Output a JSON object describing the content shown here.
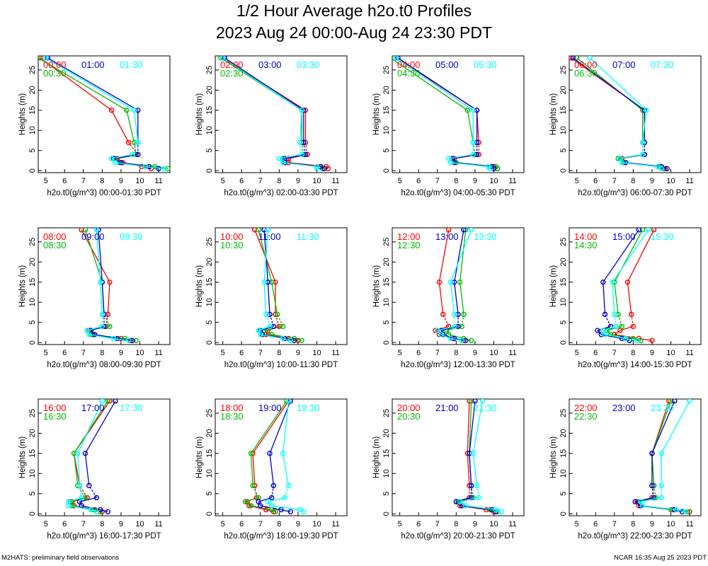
{
  "title": "1/2 Hour Average h2o.t0 Profiles",
  "subtitle": "2023 Aug 24 00:00-Aug 24 23:30 PDT",
  "footer_left": "M2HATS: preliminary field observations",
  "footer_right": "NCAR 16:35 Aug 25 2023 PDT",
  "series_colors": [
    "#ff0000",
    "#0000cc",
    "#00bb00",
    "#00ffff"
  ],
  "chart_data": [
    {
      "type": "line",
      "xlabel": "h2o.t0(g/m^3) 00:00-01:30 PDT",
      "ylabel": "Heights (m)",
      "xlim": [
        4.6,
        11.6
      ],
      "ylim": [
        -0.5,
        28.5
      ],
      "xticks": [
        5,
        6,
        7,
        8,
        9,
        10,
        11
      ],
      "yticks": [
        0,
        5,
        10,
        15,
        20,
        25
      ],
      "heights": [
        0.5,
        1,
        2,
        3,
        4,
        7,
        15,
        28
      ],
      "series": [
        {
          "name": "00:00",
          "color": "#ff0000",
          "values": [
            10.6,
            10.1,
            9.1,
            8.8,
            9.9,
            9.4,
            8.5,
            4.7
          ]
        },
        {
          "name": "01:00",
          "color": "#0000cc",
          "values": [
            11.0,
            10.5,
            9.0,
            8.6,
            9.9,
            9.9,
            9.9,
            5.1
          ]
        },
        {
          "name": "00:30",
          "color": "#00bb00",
          "values": [
            11.5,
            10.8,
            8.9,
            8.7,
            9.8,
            9.7,
            9.3,
            4.6
          ]
        },
        {
          "name": "01:30",
          "color": "#00ffff",
          "values": [
            11.3,
            10.3,
            8.7,
            8.5,
            9.6,
            9.9,
            9.7,
            5.0
          ]
        }
      ]
    },
    {
      "type": "line",
      "xlabel": "h2o.t0(g/m^3) 02:00-03:30 PDT",
      "ylabel": "Heights (m)",
      "xlim": [
        4.6,
        11.6
      ],
      "ylim": [
        -0.5,
        28.5
      ],
      "xticks": [
        5,
        6,
        7,
        8,
        9,
        10,
        11
      ],
      "yticks": [
        0,
        5,
        10,
        15,
        20,
        25
      ],
      "heights": [
        0.5,
        1,
        2,
        3,
        4,
        7,
        15,
        28
      ],
      "series": [
        {
          "name": "02:00",
          "color": "#ff0000",
          "values": [
            10.6,
            10.5,
            8.5,
            8.5,
            9.5,
            9.4,
            9.4,
            5.0
          ]
        },
        {
          "name": "03:00",
          "color": "#0000cc",
          "values": [
            10.4,
            10.2,
            8.3,
            8.3,
            9.4,
            9.3,
            9.3,
            5.1
          ]
        },
        {
          "name": "02:30",
          "color": "#00bb00",
          "values": [
            10.3,
            10.2,
            8.2,
            8.2,
            9.3,
            9.2,
            9.2,
            4.9
          ]
        },
        {
          "name": "03:30",
          "color": "#00ffff",
          "values": [
            10.0,
            10.0,
            8.2,
            8.0,
            9.2,
            9.1,
            9.2,
            5.0
          ]
        }
      ]
    },
    {
      "type": "line",
      "xlabel": "h2o.t0(g/m^3) 04:00-05:30 PDT",
      "ylabel": "Heights (m)",
      "xlim": [
        4.6,
        11.6
      ],
      "ylim": [
        -0.5,
        28.5
      ],
      "xticks": [
        5,
        6,
        7,
        8,
        9,
        10,
        11
      ],
      "yticks": [
        0,
        5,
        10,
        15,
        20,
        25
      ],
      "heights": [
        0.5,
        1,
        2,
        3,
        4,
        7,
        15,
        28
      ],
      "series": [
        {
          "name": "04:00",
          "color": "#ff0000",
          "values": [
            10.2,
            10.0,
            8.0,
            7.9,
            9.2,
            9.2,
            9.1,
            4.8
          ]
        },
        {
          "name": "05:00",
          "color": "#0000cc",
          "values": [
            10.0,
            9.9,
            7.9,
            7.8,
            9.1,
            9.1,
            9.1,
            4.9
          ]
        },
        {
          "name": "04:30",
          "color": "#00bb00",
          "values": [
            10.2,
            10.1,
            8.0,
            7.8,
            9.0,
            8.9,
            8.6,
            4.5
          ]
        },
        {
          "name": "05:30",
          "color": "#00ffff",
          "values": [
            9.8,
            9.7,
            7.7,
            7.6,
            8.9,
            8.9,
            8.9,
            4.8
          ]
        }
      ]
    },
    {
      "type": "line",
      "xlabel": "h2o.t0(g/m^3) 06:00-07:30 PDT",
      "ylabel": "Heights (m)",
      "xlim": [
        4.6,
        11.6
      ],
      "ylim": [
        -0.5,
        28.5
      ],
      "xticks": [
        5,
        6,
        7,
        8,
        9,
        10,
        11
      ],
      "yticks": [
        0,
        5,
        10,
        15,
        20,
        25
      ],
      "heights": [
        0.5,
        1,
        2,
        3,
        4,
        7,
        15,
        28
      ],
      "series": [
        {
          "name": "06:00",
          "color": "#ff0000",
          "values": [
            9.7,
            9.5,
            7.5,
            7.4,
            8.6,
            8.6,
            8.6,
            4.7
          ]
        },
        {
          "name": "07:00",
          "color": "#0000cc",
          "values": [
            9.8,
            9.5,
            7.6,
            7.3,
            8.6,
            8.6,
            8.6,
            4.8
          ]
        },
        {
          "name": "06:30",
          "color": "#00bb00",
          "values": [
            9.6,
            9.4,
            7.5,
            7.2,
            8.5,
            8.5,
            8.5,
            5.0
          ]
        },
        {
          "name": "07:30",
          "color": "#00ffff",
          "values": [
            9.5,
            9.3,
            7.4,
            7.3,
            8.5,
            8.5,
            8.7,
            5.7
          ]
        }
      ]
    },
    {
      "type": "line",
      "xlabel": "h2o.t0(g/m^3) 08:00-09:30 PDT",
      "ylabel": "Heights (m)",
      "xlim": [
        4.6,
        11.6
      ],
      "ylim": [
        -0.5,
        28.5
      ],
      "xticks": [
        5,
        6,
        7,
        8,
        9,
        10,
        11
      ],
      "yticks": [
        0,
        5,
        10,
        15,
        20,
        25
      ],
      "heights": [
        0.5,
        1,
        2,
        3,
        4,
        7,
        15,
        28
      ],
      "series": [
        {
          "name": "08:00",
          "color": "#ff0000",
          "values": [
            9.5,
            9.0,
            7.5,
            7.3,
            8.2,
            8.3,
            8.4,
            6.9
          ]
        },
        {
          "name": "09:00",
          "color": "#0000cc",
          "values": [
            9.6,
            8.8,
            7.6,
            7.4,
            8.1,
            8.1,
            8.0,
            7.8
          ]
        },
        {
          "name": "08:30",
          "color": "#00bb00",
          "values": [
            9.8,
            9.2,
            7.4,
            7.2,
            8.4,
            8.1,
            8.0,
            7.1
          ]
        },
        {
          "name": "09:30",
          "color": "#00ffff",
          "values": [
            9.4,
            8.6,
            7.3,
            7.2,
            8.0,
            8.0,
            7.9,
            7.7
          ]
        }
      ]
    },
    {
      "type": "line",
      "xlabel": "h2o.t0(g/m^3) 10:00-11:30 PDT",
      "ylabel": "Heights (m)",
      "xlim": [
        4.6,
        11.6
      ],
      "ylim": [
        -0.5,
        28.5
      ],
      "xticks": [
        5,
        6,
        7,
        8,
        9,
        10,
        11
      ],
      "yticks": [
        0,
        5,
        10,
        15,
        20,
        25
      ],
      "heights": [
        0.5,
        1,
        2,
        3,
        4,
        7,
        15,
        28
      ],
      "series": [
        {
          "name": "10:00",
          "color": "#ff0000",
          "values": [
            9.0,
            8.5,
            7.3,
            7.4,
            8.0,
            7.8,
            7.8,
            6.7
          ]
        },
        {
          "name": "11:00",
          "color": "#0000cc",
          "values": [
            8.8,
            8.3,
            7.1,
            7.0,
            7.7,
            7.5,
            7.4,
            7.2
          ]
        },
        {
          "name": "10:30",
          "color": "#00bb00",
          "values": [
            9.2,
            8.8,
            7.6,
            7.2,
            8.2,
            7.9,
            7.6,
            6.9
          ]
        },
        {
          "name": "11:30",
          "color": "#00ffff",
          "values": [
            8.6,
            8.2,
            7.0,
            6.9,
            7.5,
            7.3,
            7.2,
            7.4
          ]
        }
      ]
    },
    {
      "type": "line",
      "xlabel": "h2o.t0(g/m^3) 12:00-13:30 PDT",
      "ylabel": "Heights (m)",
      "xlim": [
        4.6,
        11.6
      ],
      "ylim": [
        -0.5,
        28.5
      ],
      "xticks": [
        5,
        6,
        7,
        8,
        9,
        10,
        11
      ],
      "yticks": [
        0,
        5,
        10,
        15,
        20,
        25
      ],
      "heights": [
        0.5,
        1,
        2,
        3,
        4,
        7,
        15,
        28
      ],
      "series": [
        {
          "name": "12:00",
          "color": "#ff0000",
          "values": [
            8.4,
            7.8,
            7.1,
            6.9,
            7.6,
            7.3,
            7.1,
            7.6
          ]
        },
        {
          "name": "13:00",
          "color": "#0000cc",
          "values": [
            8.5,
            7.9,
            7.3,
            7.2,
            8.1,
            8.1,
            7.9,
            8.4
          ]
        },
        {
          "name": "12:30",
          "color": "#00bb00",
          "values": [
            8.8,
            8.4,
            7.6,
            7.5,
            8.3,
            8.4,
            8.2,
            8.5
          ]
        },
        {
          "name": "13:30",
          "color": "#00ffff",
          "values": [
            8.3,
            7.7,
            7.2,
            7.0,
            7.9,
            7.9,
            7.7,
            8.8
          ]
        }
      ]
    },
    {
      "type": "line",
      "xlabel": "h2o.t0(g/m^3) 14:00-15:30 PDT",
      "ylabel": "Heights (m)",
      "xlim": [
        4.6,
        11.6
      ],
      "ylim": [
        -0.5,
        28.5
      ],
      "xticks": [
        5,
        6,
        7,
        8,
        9,
        10,
        11
      ],
      "yticks": [
        0,
        5,
        10,
        15,
        20,
        25
      ],
      "heights": [
        0.5,
        1,
        2,
        3,
        4,
        7,
        15,
        28
      ],
      "series": [
        {
          "name": "14:00",
          "color": "#ff0000",
          "values": [
            9.0,
            8.3,
            7.0,
            7.3,
            8.0,
            7.9,
            7.7,
            9.1
          ]
        },
        {
          "name": "15:00",
          "color": "#0000cc",
          "values": [
            7.8,
            7.4,
            6.3,
            6.1,
            6.8,
            6.5,
            6.4,
            8.3
          ]
        },
        {
          "name": "14:30",
          "color": "#00bb00",
          "values": [
            8.4,
            8.0,
            6.8,
            6.6,
            7.4,
            7.2,
            7.0,
            8.5
          ]
        },
        {
          "name": "15:30",
          "color": "#00ffff",
          "values": [
            8.2,
            7.6,
            6.5,
            6.4,
            7.1,
            7.0,
            6.9,
            8.8
          ]
        }
      ]
    },
    {
      "type": "line",
      "xlabel": "h2o.t0(g/m^3) 16:00-17:30 PDT",
      "ylabel": "Heights (m)",
      "xlim": [
        4.6,
        11.6
      ],
      "ylim": [
        -0.5,
        28.5
      ],
      "xticks": [
        5,
        6,
        7,
        8,
        9,
        10,
        11
      ],
      "yticks": [
        0,
        5,
        10,
        15,
        20,
        25
      ],
      "heights": [
        0.5,
        1,
        2,
        3,
        4,
        7,
        15,
        28
      ],
      "series": [
        {
          "name": "16:00",
          "color": "#ff0000",
          "values": [
            8.0,
            7.6,
            6.5,
            6.4,
            7.2,
            6.8,
            6.5,
            8.4
          ]
        },
        {
          "name": "17:00",
          "color": "#0000cc",
          "values": [
            8.3,
            7.9,
            6.9,
            6.8,
            7.7,
            7.3,
            7.1,
            8.7
          ]
        },
        {
          "name": "16:30",
          "color": "#00bb00",
          "values": [
            7.9,
            7.5,
            6.4,
            6.3,
            7.1,
            6.7,
            6.5,
            8.3
          ]
        },
        {
          "name": "17:30",
          "color": "#00ffff",
          "values": [
            7.7,
            7.4,
            6.2,
            6.2,
            6.9,
            6.8,
            6.7,
            8.0
          ]
        }
      ]
    },
    {
      "type": "line",
      "xlabel": "h2o.t0(g/m^3) 18:00-19:30 PDT",
      "ylabel": "Heights (m)",
      "xlim": [
        4.6,
        11.6
      ],
      "ylim": [
        -0.5,
        28.5
      ],
      "xticks": [
        5,
        6,
        7,
        8,
        9,
        10,
        11
      ],
      "yticks": [
        0,
        5,
        10,
        15,
        20,
        25
      ],
      "heights": [
        0.5,
        1,
        2,
        3,
        4,
        7,
        15,
        28
      ],
      "series": [
        {
          "name": "18:00",
          "color": "#ff0000",
          "values": [
            7.7,
            7.3,
            6.4,
            6.3,
            6.8,
            6.7,
            6.6,
            8.5
          ]
        },
        {
          "name": "19:00",
          "color": "#0000cc",
          "values": [
            8.6,
            8.1,
            7.0,
            6.9,
            7.6,
            7.7,
            7.5,
            8.6
          ]
        },
        {
          "name": "18:30",
          "color": "#00bb00",
          "values": [
            7.8,
            7.6,
            6.5,
            6.2,
            6.9,
            6.6,
            6.5,
            8.4
          ]
        },
        {
          "name": "19:30",
          "color": "#00ffff",
          "values": [
            9.3,
            9.1,
            7.6,
            7.4,
            8.3,
            8.5,
            8.2,
            8.5
          ]
        }
      ]
    },
    {
      "type": "line",
      "xlabel": "h2o.t0(g/m^3) 20:00-21:30 PDT",
      "ylabel": "Heights (m)",
      "xlim": [
        4.6,
        11.6
      ],
      "ylim": [
        -0.5,
        28.5
      ],
      "xticks": [
        5,
        6,
        7,
        8,
        9,
        10,
        11
      ],
      "yticks": [
        0,
        5,
        10,
        15,
        20,
        25
      ],
      "heights": [
        0.5,
        1,
        2,
        3,
        4,
        7,
        15,
        28
      ],
      "series": [
        {
          "name": "20:00",
          "color": "#ff0000",
          "values": [
            10.0,
            9.6,
            8.2,
            8.0,
            8.7,
            8.7,
            8.6,
            8.7
          ]
        },
        {
          "name": "21:00",
          "color": "#0000cc",
          "values": [
            10.1,
            9.9,
            8.3,
            8.0,
            8.8,
            8.8,
            8.7,
            9.0
          ]
        },
        {
          "name": "20:30",
          "color": "#00bb00",
          "values": [
            10.2,
            9.8,
            8.3,
            8.1,
            8.9,
            8.8,
            8.7,
            8.8
          ]
        },
        {
          "name": "21:30",
          "color": "#00ffff",
          "values": [
            10.4,
            10.1,
            8.5,
            8.2,
            9.2,
            9.1,
            8.9,
            9.4
          ]
        }
      ]
    },
    {
      "type": "line",
      "xlabel": "h2o.t0(g/m^3) 22:00-23:30 PDT",
      "ylabel": "Heights (m)",
      "xlim": [
        4.6,
        11.6
      ],
      "ylim": [
        -0.5,
        28.5
      ],
      "xticks": [
        5,
        6,
        7,
        8,
        9,
        10,
        11
      ],
      "yticks": [
        0,
        5,
        10,
        15,
        20,
        25
      ],
      "heights": [
        0.5,
        1,
        2,
        3,
        4,
        7,
        15,
        28
      ],
      "series": [
        {
          "name": "22:00",
          "color": "#ff0000",
          "values": [
            11.0,
            10.1,
            8.3,
            8.2,
            9.0,
            9.1,
            9.0,
            9.9
          ]
        },
        {
          "name": "23:00",
          "color": "#0000cc",
          "values": [
            10.6,
            10.2,
            8.4,
            8.1,
            9.1,
            9.0,
            9.0,
            10.2
          ]
        },
        {
          "name": "22:30",
          "color": "#00bb00",
          "values": [
            10.9,
            10.0,
            8.4,
            8.3,
            9.2,
            9.1,
            9.0,
            10.0
          ]
        },
        {
          "name": "23:30",
          "color": "#00ffff",
          "values": [
            10.8,
            10.3,
            8.5,
            8.4,
            9.5,
            9.5,
            9.5,
            11.0
          ]
        }
      ]
    }
  ]
}
